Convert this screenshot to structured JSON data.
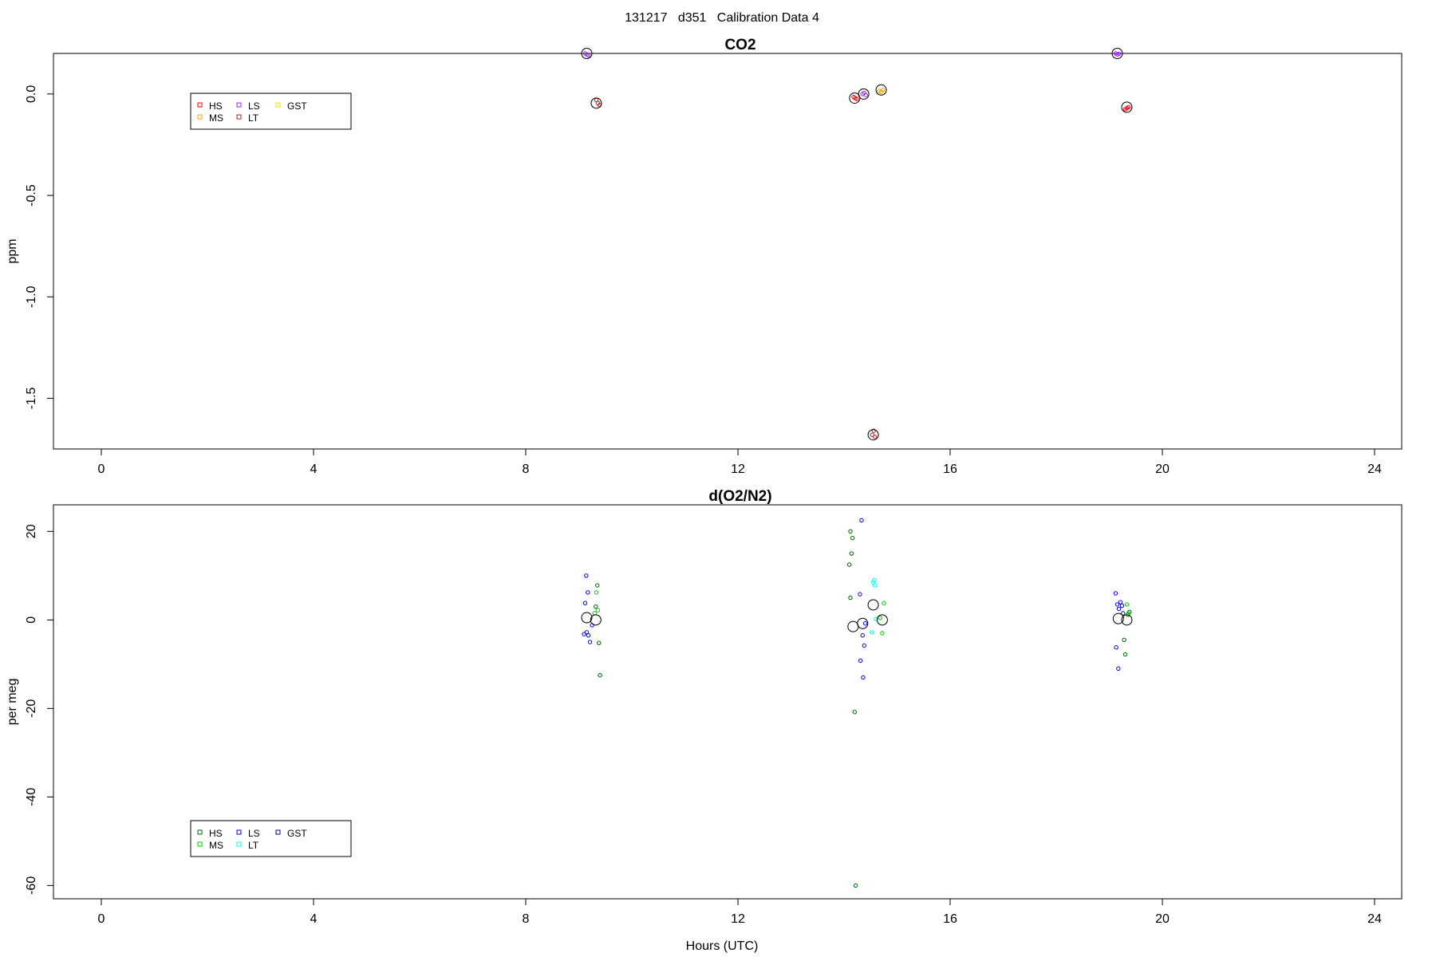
{
  "page_title": "131217   d351   Calibration Data 4",
  "colors": {
    "HS_co2": "#ff0000",
    "MS_co2": "#ffa500",
    "LS_co2": "#a020f0",
    "LT_co2": "#b22222",
    "GST_co2": "#ffd700",
    "HS_o2": "#006400",
    "MS_o2": "#00cc00",
    "LS_o2": "#0000ff",
    "LT_o2": "#00ffff",
    "GST_o2": "#00008b",
    "mean": "#000000"
  },
  "chart_data": [
    {
      "type": "scatter",
      "title": "CO2",
      "xlabel": "",
      "ylabel": "ppm",
      "xlim": [
        0,
        24
      ],
      "ylim": [
        -1.75,
        0.2
      ],
      "xticks": [
        "0",
        "4",
        "8",
        "12",
        "16",
        "20",
        "24"
      ],
      "yticks": [
        "0.0",
        "-0.5",
        "-1.0",
        "-1.5"
      ],
      "legend": {
        "position": "top-left",
        "entries": [
          "HS",
          "LS",
          "GST",
          "MS",
          "LT"
        ]
      },
      "series": [
        {
          "name": "HS",
          "color": "#ff0000",
          "points": [
            [
              9.33,
              -0.03
            ],
            [
              9.36,
              -0.045
            ],
            [
              9.39,
              -0.055
            ],
            [
              14.18,
              -0.015
            ],
            [
              14.21,
              -0.02
            ],
            [
              14.24,
              -0.025
            ],
            [
              19.33,
              -0.07
            ],
            [
              19.36,
              -0.065
            ],
            [
              19.3,
              -0.075
            ]
          ]
        },
        {
          "name": "MS",
          "color": "#ffa500",
          "points": [
            [
              14.7,
              0.01
            ],
            [
              14.73,
              0.02
            ],
            [
              14.66,
              0.015
            ]
          ]
        },
        {
          "name": "LS",
          "color": "#a020f0",
          "points": [
            [
              9.12,
              0.2
            ],
            [
              9.15,
              0.195
            ],
            [
              9.18,
              0.19
            ],
            [
              14.35,
              -0.0
            ],
            [
              14.38,
              0.005
            ],
            [
              14.41,
              -0.005
            ],
            [
              19.12,
              0.2
            ],
            [
              19.15,
              0.195
            ],
            [
              19.18,
              0.198
            ]
          ]
        },
        {
          "name": "LT",
          "color": "#b22222",
          "points": [
            [
              14.53,
              -1.68
            ],
            [
              14.56,
              -1.66
            ],
            [
              14.58,
              -1.69
            ]
          ]
        },
        {
          "name": "GST",
          "color": "#ffd700",
          "points": []
        }
      ],
      "means": [
        [
          9.15,
          0.2
        ],
        [
          9.33,
          -0.045
        ],
        [
          14.2,
          -0.02
        ],
        [
          14.37,
          0.0
        ],
        [
          14.55,
          -1.68
        ],
        [
          14.7,
          0.02
        ],
        [
          19.15,
          0.2
        ],
        [
          19.33,
          -0.065
        ]
      ]
    },
    {
      "type": "scatter",
      "title": "d(O2/N2)",
      "xlabel": "Hours (UTC)",
      "ylabel": "per meg",
      "xlim": [
        0,
        24
      ],
      "ylim": [
        -63,
        26
      ],
      "xticks": [
        "0",
        "4",
        "8",
        "12",
        "16",
        "20",
        "24"
      ],
      "yticks": [
        "20",
        "0",
        "-20",
        "-40",
        "-60"
      ],
      "legend": {
        "position": "bottom-left",
        "entries": [
          "HS",
          "LS",
          "GST",
          "MS",
          "LT"
        ]
      },
      "series": [
        {
          "name": "HS",
          "color": "#006400",
          "points": [
            [
              9.32,
              3
            ],
            [
              9.35,
              7.8
            ],
            [
              9.38,
              -5.2
            ],
            [
              9.4,
              -12.5
            ],
            [
              14.12,
              20
            ],
            [
              14.14,
              15
            ],
            [
              14.1,
              12.5
            ],
            [
              14.16,
              18.5
            ],
            [
              14.12,
              5
            ],
            [
              14.2,
              -20.8
            ],
            [
              14.22,
              -60
            ],
            [
              19.28,
              -4.5
            ],
            [
              19.3,
              -7.8
            ],
            [
              19.35,
              1.2
            ],
            [
              19.38,
              1.8
            ]
          ]
        },
        {
          "name": "MS",
          "color": "#00cc00",
          "points": [
            [
              9.3,
              1.5
            ],
            [
              9.33,
              6.2
            ],
            [
              9.36,
              2.2
            ],
            [
              14.68,
              0.5
            ],
            [
              14.72,
              -3
            ],
            [
              14.75,
              3.8
            ],
            [
              19.33,
              3.5
            ],
            [
              19.36,
              1.5
            ]
          ]
        },
        {
          "name": "LS",
          "color": "#0000ff",
          "points": [
            [
              9.14,
              10
            ],
            [
              9.17,
              6.2
            ],
            [
              9.12,
              3.8
            ],
            [
              9.15,
              -2.8
            ],
            [
              9.18,
              -3.5
            ],
            [
              9.21,
              -5
            ],
            [
              9.25,
              -1.2
            ],
            [
              9.1,
              -3.2
            ],
            [
              14.3,
              5.8
            ],
            [
              14.33,
              22.5
            ],
            [
              14.35,
              -3.5
            ],
            [
              14.38,
              -5.8
            ],
            [
              14.31,
              -9.2
            ],
            [
              14.36,
              -13
            ],
            [
              14.4,
              -0.8
            ],
            [
              19.12,
              6
            ],
            [
              19.15,
              3.5
            ],
            [
              19.18,
              2.5
            ],
            [
              19.21,
              4
            ],
            [
              19.13,
              -6.2
            ],
            [
              19.17,
              -11
            ]
          ]
        },
        {
          "name": "LT",
          "color": "#00ffff",
          "points": [
            [
              14.55,
              8.5
            ],
            [
              14.57,
              9
            ],
            [
              14.6,
              0.2
            ],
            [
              14.52,
              -2.8
            ],
            [
              14.58,
              7.8
            ]
          ]
        },
        {
          "name": "GST",
          "color": "#00008b",
          "points": [
            [
              19.24,
              3.2
            ],
            [
              19.26,
              1.5
            ]
          ]
        }
      ],
      "means": [
        [
          9.15,
          0.5
        ],
        [
          9.32,
          0
        ],
        [
          14.17,
          -1.5
        ],
        [
          14.35,
          -0.8
        ],
        [
          14.55,
          3.4
        ],
        [
          14.72,
          0
        ],
        [
          19.17,
          0.3
        ],
        [
          19.33,
          0
        ]
      ]
    }
  ]
}
